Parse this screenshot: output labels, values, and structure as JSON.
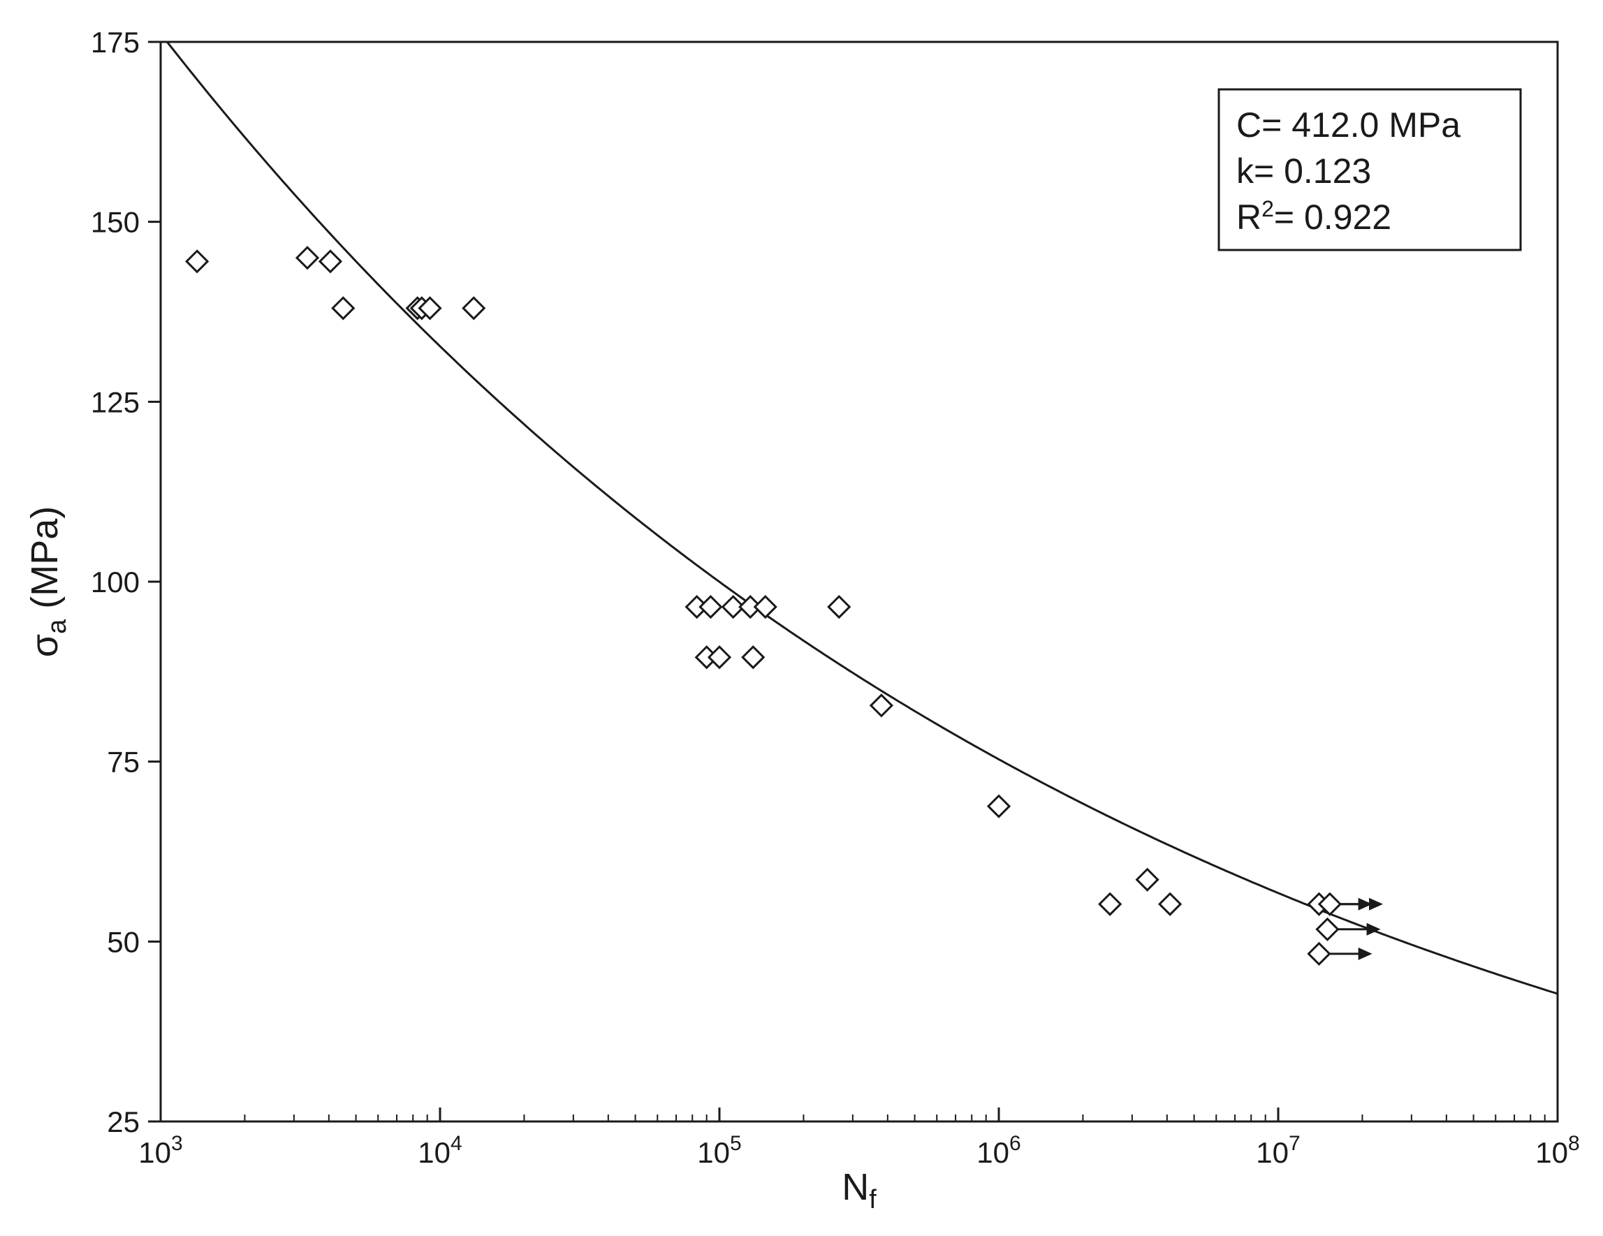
{
  "chart_data": {
    "type": "scatter",
    "x_scale": "log",
    "xlim": [
      1000,
      100000000
    ],
    "ylim": [
      25,
      175
    ],
    "x_ticks": [
      {
        "value": 1000,
        "base": "10",
        "exp": "3"
      },
      {
        "value": 10000,
        "base": "10",
        "exp": "4"
      },
      {
        "value": 100000,
        "base": "10",
        "exp": "5"
      },
      {
        "value": 1000000,
        "base": "10",
        "exp": "6"
      },
      {
        "value": 10000000,
        "base": "10",
        "exp": "7"
      },
      {
        "value": 100000000,
        "base": "10",
        "exp": "8"
      }
    ],
    "y_ticks": [
      "25",
      "50",
      "75",
      "100",
      "125",
      "150",
      "175"
    ],
    "xlabel": {
      "main": "N",
      "sub": "f"
    },
    "ylabel": {
      "main": "σ",
      "sub": "a",
      "rest": " (MPa)"
    },
    "grid": false,
    "legend_position": "top-right",
    "annotation": {
      "line1": "C= 412.0 MPa",
      "line2": "k= 0.123",
      "line3_prefix": "R",
      "line3_sup": "2",
      "line3_rest": "= 0.922"
    },
    "fit": {
      "C": 412.0,
      "k": 0.123
    },
    "series": [
      {
        "marker": "diamond-open",
        "points": [
          {
            "x": 1350,
            "y": 144.5
          },
          {
            "x": 3350,
            "y": 145
          },
          {
            "x": 4050,
            "y": 144.5
          },
          {
            "x": 4500,
            "y": 138
          },
          {
            "x": 8300,
            "y": 138
          },
          {
            "x": 8600,
            "y": 138
          },
          {
            "x": 9200,
            "y": 138
          },
          {
            "x": 13200,
            "y": 138
          },
          {
            "x": 83000,
            "y": 96.5
          },
          {
            "x": 93000,
            "y": 96.5
          },
          {
            "x": 112000,
            "y": 96.5
          },
          {
            "x": 129000,
            "y": 96.5
          },
          {
            "x": 146000,
            "y": 96.5
          },
          {
            "x": 268000,
            "y": 96.5
          },
          {
            "x": 90000,
            "y": 89.5
          },
          {
            "x": 100000,
            "y": 89.5
          },
          {
            "x": 132000,
            "y": 89.5
          },
          {
            "x": 380000,
            "y": 82.8
          },
          {
            "x": 1000000,
            "y": 68.8
          },
          {
            "x": 2500000,
            "y": 55.2
          },
          {
            "x": 3400000,
            "y": 58.6
          },
          {
            "x": 4100000,
            "y": 55.2
          }
        ]
      },
      {
        "name": "runout",
        "marker": "diamond-open-arrow",
        "points": [
          {
            "x": 14000000,
            "y": 55.2
          },
          {
            "x": 15300000,
            "y": 55.2
          },
          {
            "x": 15000000,
            "y": 51.7
          },
          {
            "x": 14000000,
            "y": 48.3
          }
        ]
      }
    ]
  }
}
